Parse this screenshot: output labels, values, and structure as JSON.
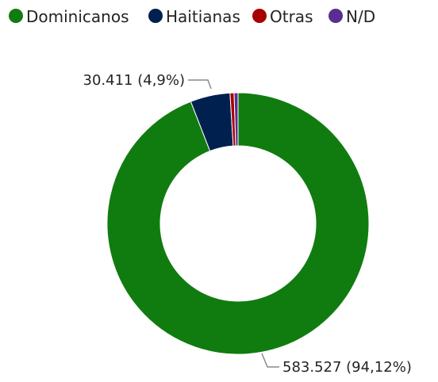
{
  "chart_data": {
    "type": "pie",
    "variant": "donut",
    "legend_position": "top-left",
    "series": [
      {
        "name": "Dominicanos",
        "value": 583527,
        "percent": 94.12,
        "color": "#107C10",
        "label": "583.527 (94,12%)"
      },
      {
        "name": "Haitianas",
        "value": 30411,
        "percent": 4.9,
        "color": "#002050",
        "label": "30.411 (4,9%)"
      },
      {
        "name": "Otras",
        "value": 0,
        "percent": 0.5,
        "color": "#A80000",
        "label": ""
      },
      {
        "name": "N/D",
        "value": 0,
        "percent": 0.48,
        "color": "#5C2D91",
        "label": ""
      }
    ]
  }
}
